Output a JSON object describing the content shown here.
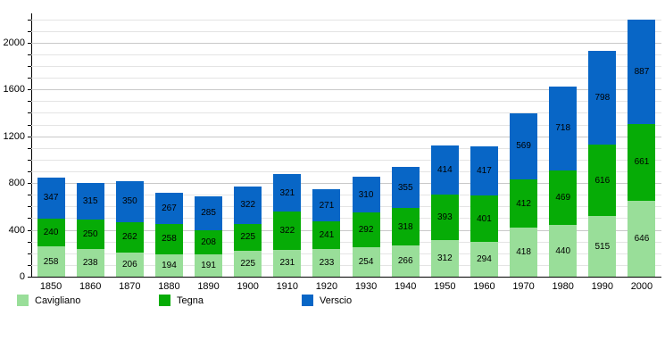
{
  "chart_data": {
    "type": "bar",
    "stacked": true,
    "title": "",
    "xlabel": "",
    "ylabel": "",
    "categories": [
      "1850",
      "1860",
      "1870",
      "1880",
      "1890",
      "1900",
      "1910",
      "1920",
      "1930",
      "1940",
      "1950",
      "1960",
      "1970",
      "1980",
      "1990",
      "2000"
    ],
    "series": [
      {
        "name": "Cavigliano",
        "color": "#99DE99",
        "values": [
          258,
          238,
          206,
          194,
          191,
          225,
          231,
          233,
          254,
          266,
          312,
          294,
          418,
          440,
          515,
          646
        ]
      },
      {
        "name": "Tegna",
        "color": "#06AC06",
        "values": [
          240,
          250,
          262,
          258,
          208,
          225,
          322,
          241,
          292,
          318,
          393,
          401,
          412,
          469,
          616,
          661
        ]
      },
      {
        "name": "Verscio",
        "color": "#0866C6",
        "values": [
          347,
          315,
          350,
          267,
          285,
          322,
          321,
          271,
          310,
          355,
          414,
          417,
          569,
          718,
          798,
          887
        ]
      }
    ],
    "ylim": [
      0,
      2250
    ],
    "y_major_ticks": [
      0,
      400,
      800,
      1200,
      1600,
      2000
    ],
    "y_minor_step": 100,
    "grid": true,
    "value_labels": true,
    "legend_position": "bottom",
    "legend": {
      "items": [
        {
          "label": "Cavigliano",
          "color": "#99DE99"
        },
        {
          "label": "Tegna",
          "color": "#06AC06"
        },
        {
          "label": "Verscio",
          "color": "#0866C6"
        }
      ]
    }
  }
}
